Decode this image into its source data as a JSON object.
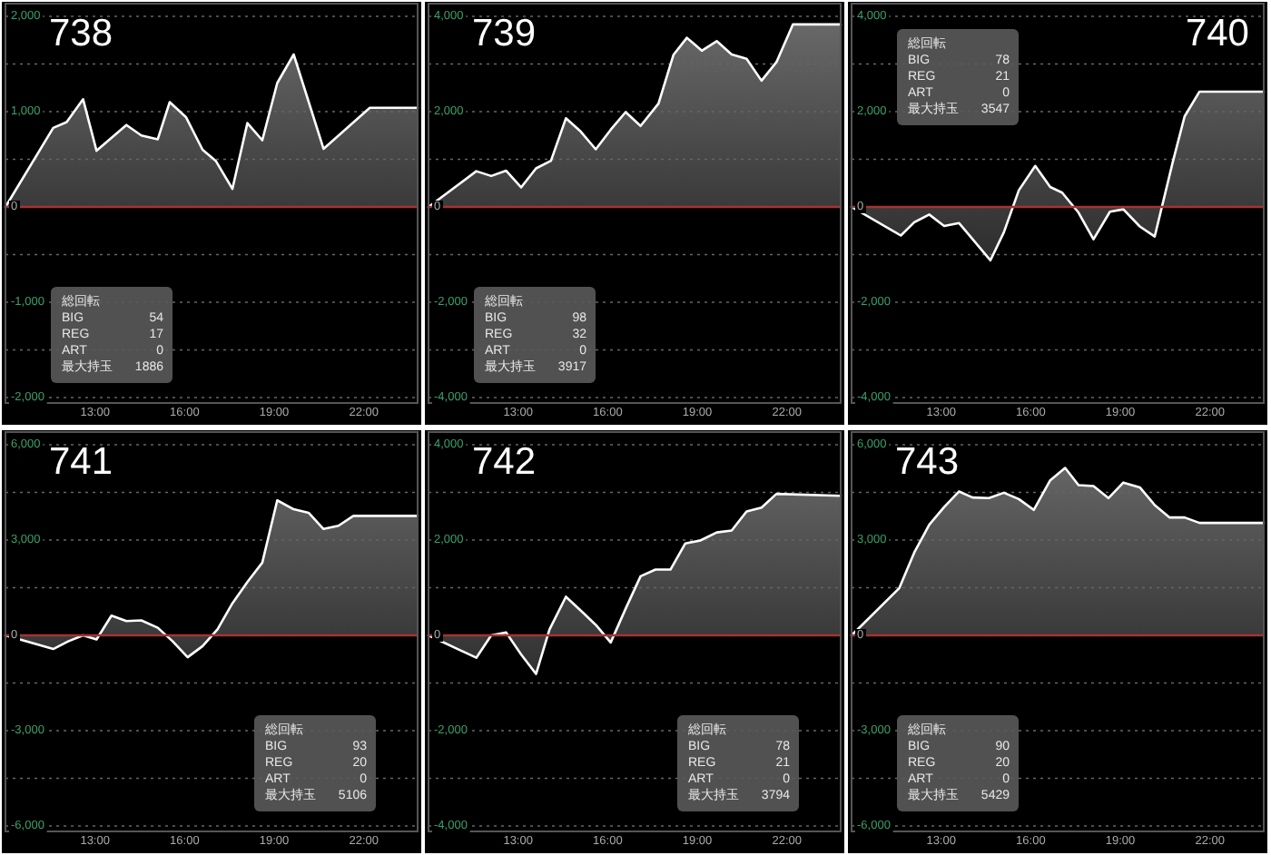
{
  "chart_data": [
    {
      "type": "area",
      "title": "738",
      "color": "#ffffff",
      "grid": "y",
      "x": [
        10.0,
        11.6,
        12.05,
        12.6,
        13.05,
        14.05,
        14.55,
        15.1,
        15.5,
        16.05,
        16.6,
        17.05,
        17.6,
        18.1,
        18.6,
        19.1,
        19.65,
        20.65,
        22.2,
        23.8
      ],
      "values": [
        0,
        830,
        890,
        1130,
        590,
        860,
        750,
        710,
        1100,
        940,
        600,
        480,
        190,
        880,
        700,
        1300,
        1600,
        610,
        1040,
        1040
      ],
      "xlim": [
        10,
        23.8
      ],
      "xticks": [
        {
          "value": 13,
          "label": "13:00"
        },
        {
          "value": 16,
          "label": "16:00"
        },
        {
          "value": 19,
          "label": "19:00"
        },
        {
          "value": 22,
          "label": "22:00"
        }
      ],
      "ylim": [
        -2000,
        2000
      ],
      "yticks": [
        {
          "value": -2000,
          "label": "-2,000"
        },
        {
          "value": -1500,
          "label": null
        },
        {
          "value": -1000,
          "label": "-1,000"
        },
        {
          "value": -500,
          "label": null
        },
        {
          "value": 0,
          "label": "0"
        },
        {
          "value": 500,
          "label": null
        },
        {
          "value": 1000,
          "label": "1,000"
        },
        {
          "value": 1500,
          "label": null
        },
        {
          "value": 2000,
          "label": "2,000"
        }
      ],
      "ref_lines": [
        {
          "axis": "y",
          "value": 0,
          "color": "#a83232"
        }
      ],
      "annotations": [
        "総回転",
        "BIG",
        "54",
        "REG",
        "17",
        "ART",
        "0",
        "最大持玉",
        "1886"
      ]
    },
    {
      "type": "area",
      "title": "739",
      "color": "#ffffff",
      "grid": "y",
      "x": [
        10.0,
        11.6,
        12.1,
        12.6,
        13.1,
        13.6,
        14.1,
        14.6,
        15.1,
        15.6,
        16.1,
        16.6,
        17.1,
        17.7,
        18.2,
        18.65,
        19.15,
        19.65,
        20.15,
        20.65,
        21.15,
        21.65,
        22.2,
        23.8
      ],
      "values": [
        0,
        750,
        650,
        760,
        410,
        810,
        970,
        1860,
        1580,
        1210,
        1620,
        1990,
        1700,
        2170,
        3190,
        3550,
        3280,
        3480,
        3200,
        3110,
        2650,
        3040,
        3830,
        3830
      ],
      "xlim": [
        10,
        23.8
      ],
      "xticks": [
        {
          "value": 13,
          "label": "13:00"
        },
        {
          "value": 16,
          "label": "16:00"
        },
        {
          "value": 19,
          "label": "19:00"
        },
        {
          "value": 22,
          "label": "22:00"
        }
      ],
      "ylim": [
        -4000,
        4000
      ],
      "yticks": [
        {
          "value": -4000,
          "label": "-4,000"
        },
        {
          "value": -3000,
          "label": null
        },
        {
          "value": -2000,
          "label": "-2,000"
        },
        {
          "value": -1000,
          "label": null
        },
        {
          "value": 0,
          "label": "0"
        },
        {
          "value": 1000,
          "label": null
        },
        {
          "value": 2000,
          "label": "2,000"
        },
        {
          "value": 3000,
          "label": null
        },
        {
          "value": 4000,
          "label": "4,000"
        }
      ],
      "ref_lines": [
        {
          "axis": "y",
          "value": 0,
          "color": "#a83232"
        }
      ],
      "annotations": [
        "総回転",
        "BIG",
        "98",
        "REG",
        "32",
        "ART",
        "0",
        "最大持玉",
        "3917"
      ]
    },
    {
      "type": "area",
      "title": "740",
      "color": "#ffffff",
      "grid": "y",
      "x": [
        10.0,
        11.65,
        12.1,
        12.6,
        13.1,
        13.6,
        14.65,
        15.1,
        15.6,
        16.15,
        16.65,
        17.05,
        17.6,
        18.1,
        18.65,
        19.1,
        19.65,
        20.15,
        20.75,
        21.15,
        21.65,
        23.8
      ],
      "values": [
        0,
        -600,
        -320,
        -160,
        -400,
        -340,
        -1120,
        -530,
        350,
        860,
        420,
        300,
        -120,
        -680,
        -100,
        -50,
        -410,
        -620,
        930,
        1900,
        2420,
        2420
      ],
      "xlim": [
        10,
        23.8
      ],
      "xticks": [
        {
          "value": 13,
          "label": "13:00"
        },
        {
          "value": 16,
          "label": "16:00"
        },
        {
          "value": 19,
          "label": "19:00"
        },
        {
          "value": 22,
          "label": "22:00"
        }
      ],
      "ylim": [
        -4000,
        4000
      ],
      "yticks": [
        {
          "value": -4000,
          "label": "-4,000"
        },
        {
          "value": -3000,
          "label": null
        },
        {
          "value": -2000,
          "label": "-2,000"
        },
        {
          "value": -1000,
          "label": null
        },
        {
          "value": 0,
          "label": "0"
        },
        {
          "value": 1000,
          "label": null
        },
        {
          "value": 2000,
          "label": "2,000"
        },
        {
          "value": 3000,
          "label": null
        },
        {
          "value": 4000,
          "label": "4,000"
        }
      ],
      "ref_lines": [
        {
          "axis": "y",
          "value": 0,
          "color": "#a83232"
        }
      ],
      "annotations": [
        "総回転",
        "BIG",
        "78",
        "REG",
        "21",
        "ART",
        "0",
        "最大持玉",
        "3547"
      ]
    },
    {
      "type": "area",
      "title": "741",
      "color": "#ffffff",
      "grid": "y",
      "x": [
        10.0,
        11.6,
        12.1,
        12.6,
        13.05,
        13.55,
        14.05,
        14.55,
        15.1,
        15.6,
        16.1,
        16.6,
        17.1,
        17.6,
        18.1,
        18.6,
        19.1,
        19.65,
        20.15,
        20.65,
        21.15,
        21.65,
        23.8
      ],
      "values": [
        0,
        -430,
        -190,
        0,
        -130,
        620,
        450,
        470,
        240,
        -190,
        -690,
        -340,
        190,
        1010,
        1680,
        2290,
        4250,
        3970,
        3860,
        3350,
        3450,
        3760,
        3760
      ],
      "xlim": [
        10,
        23.8
      ],
      "xticks": [
        {
          "value": 13,
          "label": "13:00"
        },
        {
          "value": 16,
          "label": "16:00"
        },
        {
          "value": 19,
          "label": "19:00"
        },
        {
          "value": 22,
          "label": "22:00"
        }
      ],
      "ylim": [
        -6000,
        6000
      ],
      "yticks": [
        {
          "value": -6000,
          "label": "-6,000"
        },
        {
          "value": -4500,
          "label": null
        },
        {
          "value": -3000,
          "label": "-3,000"
        },
        {
          "value": -1500,
          "label": null
        },
        {
          "value": 0,
          "label": "0"
        },
        {
          "value": 1500,
          "label": null
        },
        {
          "value": 3000,
          "label": "3,000"
        },
        {
          "value": 4500,
          "label": null
        },
        {
          "value": 6000,
          "label": "6,000"
        }
      ],
      "ref_lines": [
        {
          "axis": "y",
          "value": 0,
          "color": "#a83232"
        }
      ],
      "annotations": [
        "総回転",
        "BIG",
        "93",
        "REG",
        "20",
        "ART",
        "0",
        "最大持玉",
        "5106"
      ]
    },
    {
      "type": "area",
      "title": "742",
      "color": "#ffffff",
      "grid": "y",
      "x": [
        10.0,
        11.6,
        12.1,
        12.6,
        13.1,
        13.6,
        14.05,
        14.6,
        15.1,
        15.6,
        16.1,
        16.6,
        17.1,
        17.6,
        18.1,
        18.6,
        19.1,
        19.65,
        20.15,
        20.65,
        21.15,
        21.65,
        23.8
      ],
      "values": [
        0,
        -470,
        0,
        60,
        -400,
        -810,
        120,
        810,
        520,
        220,
        -150,
        560,
        1240,
        1380,
        1380,
        1930,
        1990,
        2160,
        2200,
        2600,
        2680,
        2970,
        2930
      ],
      "xlim": [
        10,
        23.8
      ],
      "xticks": [
        {
          "value": 13,
          "label": "13:00"
        },
        {
          "value": 16,
          "label": "16:00"
        },
        {
          "value": 19,
          "label": "19:00"
        },
        {
          "value": 22,
          "label": "22:00"
        }
      ],
      "ylim": [
        -4000,
        4000
      ],
      "yticks": [
        {
          "value": -4000,
          "label": "-4,000"
        },
        {
          "value": -3000,
          "label": null
        },
        {
          "value": -2000,
          "label": "-2,000"
        },
        {
          "value": -1000,
          "label": null
        },
        {
          "value": 0,
          "label": "0"
        },
        {
          "value": 1000,
          "label": null
        },
        {
          "value": 2000,
          "label": "2,000"
        },
        {
          "value": 3000,
          "label": null
        },
        {
          "value": 4000,
          "label": "4,000"
        }
      ],
      "ref_lines": [
        {
          "axis": "y",
          "value": 0,
          "color": "#a83232"
        }
      ],
      "annotations": [
        "総回転",
        "BIG",
        "78",
        "REG",
        "21",
        "ART",
        "0",
        "最大持玉",
        "3794"
      ]
    },
    {
      "type": "area",
      "title": "743",
      "color": "#ffffff",
      "grid": "y",
      "x": [
        10.0,
        11.6,
        12.1,
        12.6,
        13.1,
        13.6,
        14.05,
        14.6,
        15.1,
        15.6,
        16.1,
        16.65,
        17.15,
        17.6,
        18.1,
        18.6,
        19.1,
        19.65,
        20.15,
        20.65,
        21.15,
        21.65,
        23.8
      ],
      "values": [
        0,
        1490,
        2610,
        3480,
        4040,
        4530,
        4340,
        4320,
        4490,
        4290,
        3950,
        4880,
        5270,
        4730,
        4700,
        4320,
        4810,
        4660,
        4100,
        3710,
        3710,
        3540,
        3540
      ],
      "xlim": [
        10,
        23.8
      ],
      "xticks": [
        {
          "value": 13,
          "label": "13:00"
        },
        {
          "value": 16,
          "label": "16:00"
        },
        {
          "value": 19,
          "label": "19:00"
        },
        {
          "value": 22,
          "label": "22:00"
        }
      ],
      "ylim": [
        -6000,
        6000
      ],
      "yticks": [
        {
          "value": -6000,
          "label": "-6,000"
        },
        {
          "value": -4500,
          "label": null
        },
        {
          "value": -3000,
          "label": "-3,000"
        },
        {
          "value": -1500,
          "label": null
        },
        {
          "value": 0,
          "label": "0"
        },
        {
          "value": 1500,
          "label": null
        },
        {
          "value": 3000,
          "label": "3,000"
        },
        {
          "value": 4500,
          "label": null
        },
        {
          "value": 6000,
          "label": "6,000"
        }
      ],
      "ref_lines": [
        {
          "axis": "y",
          "value": 0,
          "color": "#a83232"
        }
      ],
      "annotations": [
        "総回転",
        "BIG",
        "90",
        "REG",
        "20",
        "ART",
        "0",
        "最大持玉",
        "5429"
      ]
    }
  ]
}
